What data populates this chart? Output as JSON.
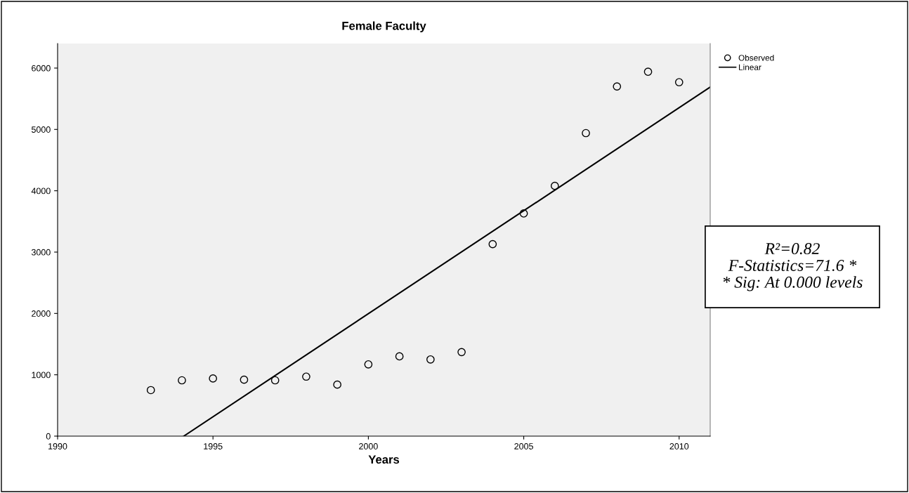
{
  "chart_data": {
    "type": "scatter",
    "title": "Female Faculty",
    "xlabel": "Years",
    "x": [
      1993,
      1994,
      1995,
      1996,
      1997,
      1998,
      1999,
      2000,
      2001,
      2002,
      2003,
      2004,
      2005,
      2006,
      2007,
      2008,
      2009,
      2010
    ],
    "series": [
      {
        "name": "Observed",
        "color": "#000000",
        "marker": "circle",
        "values": [
          750,
          910,
          940,
          920,
          910,
          970,
          840,
          1170,
          1300,
          1250,
          1370,
          3130,
          3630,
          4080,
          4940,
          5700,
          5940,
          5770
        ]
      },
      {
        "name": "Linear",
        "type": "line",
        "color": "#000000",
        "x": [
          1994.06,
          2011
        ],
        "values": [
          0,
          5690
        ]
      }
    ],
    "xlim": [
      1990,
      2011
    ],
    "ylim": [
      0,
      6400
    ],
    "xticks": [
      1990,
      1995,
      2000,
      2005,
      2010
    ],
    "yticks": [
      0,
      1000,
      2000,
      3000,
      4000,
      5000,
      6000
    ],
    "grid": false,
    "legend": "top right",
    "annotations": [
      "R²=0.82\nF-Statistics=71.6 *\n* Sig: At 0.000 levels"
    ]
  }
}
